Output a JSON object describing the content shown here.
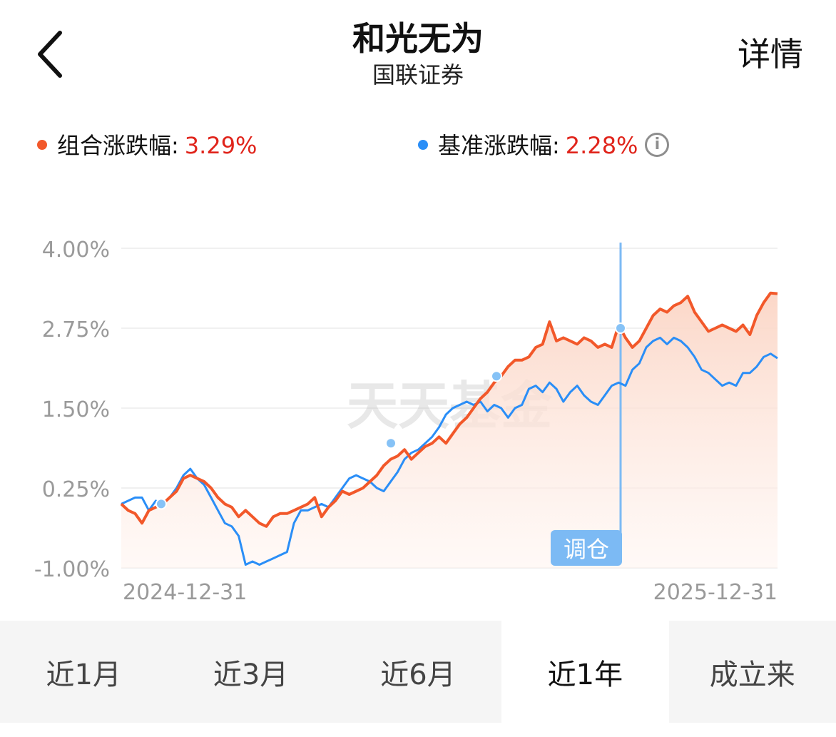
{
  "header": {
    "title": "和光无为",
    "subtitle": "国联证券",
    "detail_label": "详情"
  },
  "legend": {
    "portfolio": {
      "label": "组合涨跌幅:",
      "value": "3.29%",
      "color": "#f2582a"
    },
    "benchmark": {
      "label": "基准涨跌幅:",
      "value": "2.28%",
      "color": "#2a8ef7"
    },
    "value_color": "#e0241b"
  },
  "chart_data": {
    "type": "line",
    "y_ticks": [
      "4.00%",
      "2.75%",
      "1.50%",
      "0.25%",
      "-1.00%"
    ],
    "ylim": [
      -1.0,
      4.0
    ],
    "x_labels": [
      "2024-12-31",
      "2025-12-31"
    ],
    "watermark": "天天基金",
    "rebalance_label": "调仓",
    "series": [
      {
        "color": "#f2582a",
        "values": [
          0.0,
          -0.1,
          -0.15,
          -0.3,
          -0.1,
          -0.05,
          0.0,
          0.1,
          0.2,
          0.4,
          0.45,
          0.4,
          0.35,
          0.25,
          0.1,
          0.0,
          -0.05,
          -0.2,
          -0.1,
          -0.2,
          -0.3,
          -0.35,
          -0.2,
          -0.15,
          -0.15,
          -0.1,
          -0.05,
          0.0,
          0.1,
          -0.2,
          -0.05,
          0.05,
          0.2,
          0.15,
          0.2,
          0.25,
          0.35,
          0.45,
          0.6,
          0.7,
          0.75,
          0.85,
          0.7,
          0.8,
          0.9,
          0.95,
          1.05,
          0.95,
          1.1,
          1.25,
          1.35,
          1.5,
          1.65,
          1.75,
          1.9,
          2.0,
          2.15,
          2.25,
          2.25,
          2.3,
          2.45,
          2.5,
          2.85,
          2.55,
          2.6,
          2.55,
          2.5,
          2.6,
          2.55,
          2.45,
          2.5,
          2.45,
          2.8,
          2.6,
          2.45,
          2.55,
          2.75,
          2.95,
          3.05,
          3.0,
          3.1,
          3.15,
          3.25,
          3.0,
          2.85,
          2.7,
          2.75,
          2.8,
          2.75,
          2.7,
          2.8,
          2.65,
          2.95,
          3.15,
          3.3,
          3.29
        ],
        "markers": [
          0.0,
          0.95,
          2.0,
          2.75
        ]
      },
      {
        "color": "#2a8ef7",
        "values": [
          0.0,
          0.05,
          0.1,
          0.1,
          -0.1,
          0.05,
          0.0,
          0.1,
          0.25,
          0.45,
          0.55,
          0.4,
          0.3,
          0.1,
          -0.1,
          -0.3,
          -0.35,
          -0.5,
          -0.95,
          -0.9,
          -0.95,
          -0.9,
          -0.85,
          -0.8,
          -0.75,
          -0.3,
          -0.1,
          -0.1,
          -0.05,
          0.0,
          -0.05,
          0.1,
          0.25,
          0.4,
          0.45,
          0.4,
          0.35,
          0.25,
          0.2,
          0.35,
          0.5,
          0.7,
          0.8,
          0.85,
          0.95,
          1.05,
          1.2,
          1.4,
          1.5,
          1.55,
          1.6,
          1.55,
          1.6,
          1.45,
          1.55,
          1.5,
          1.35,
          1.5,
          1.55,
          1.8,
          1.85,
          1.75,
          1.9,
          1.8,
          1.6,
          1.75,
          1.85,
          1.7,
          1.6,
          1.55,
          1.7,
          1.85,
          1.9,
          1.85,
          2.1,
          2.2,
          2.45,
          2.55,
          2.6,
          2.5,
          2.6,
          2.55,
          2.45,
          2.3,
          2.1,
          2.05,
          1.95,
          1.85,
          1.9,
          1.85,
          2.05,
          2.05,
          2.15,
          2.3,
          2.35,
          2.28
        ]
      }
    ]
  },
  "tabs": [
    {
      "label": "近1月",
      "active": false
    },
    {
      "label": "近3月",
      "active": false
    },
    {
      "label": "近6月",
      "active": false
    },
    {
      "label": "近1年",
      "active": true
    },
    {
      "label": "成立来",
      "active": false
    }
  ]
}
